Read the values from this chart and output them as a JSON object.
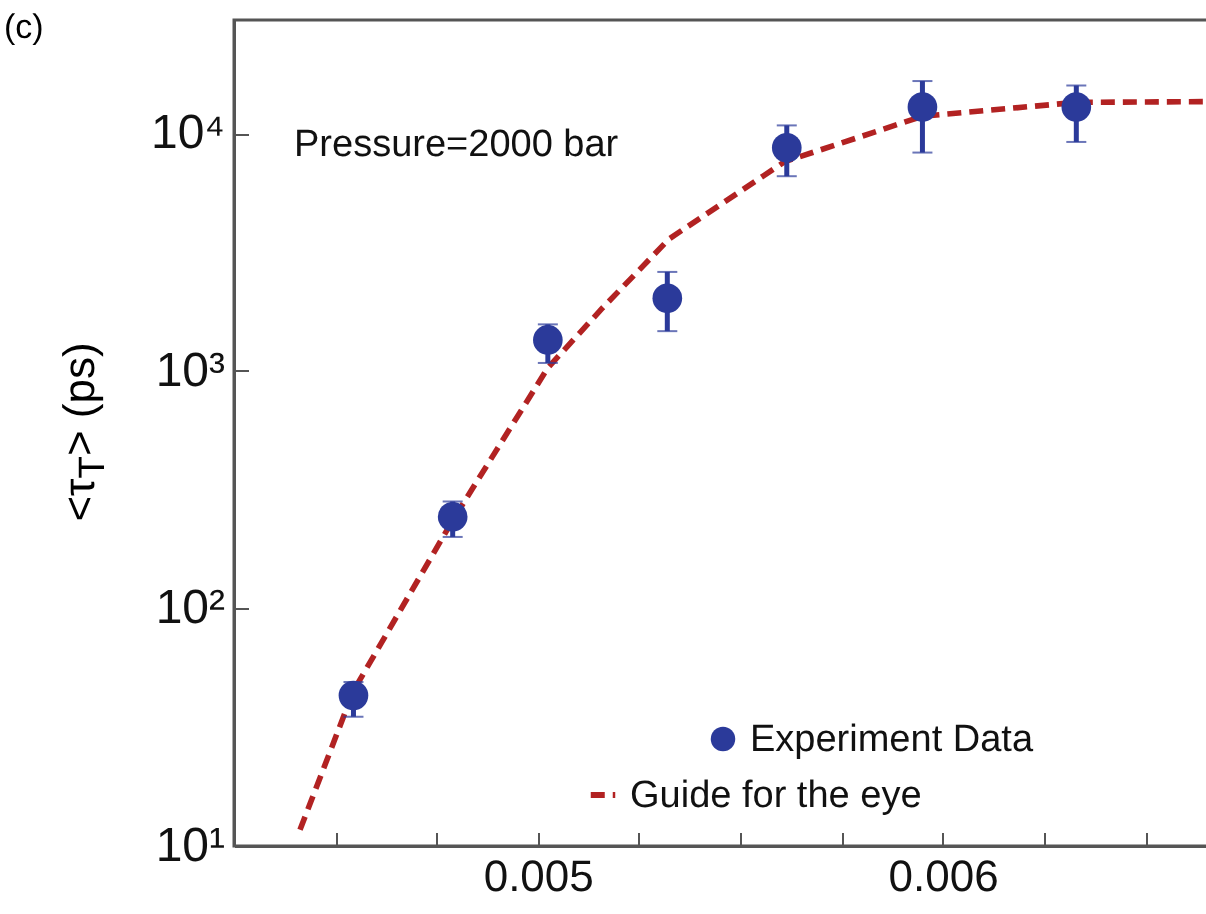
{
  "chart_data": {
    "type": "scatter",
    "ylabel": "<τ$_{T}$> (ps)",
    "annotations": [
      "(c)",
      "Pressure=2000 bar"
    ],
    "x": [
      0.004545,
      0.00479,
      0.005025,
      0.00532,
      0.005615,
      0.00595,
      0.00633
    ],
    "series": [
      {
        "name": "Experiment Data",
        "color": "#2b3a9a",
        "marker": "circle",
        "values": [
          43,
          243,
          1350,
          2020,
          8700,
          12900,
          12900
        ],
        "errors": [
          [
            35,
            49
          ],
          [
            200,
            282
          ],
          [
            1080,
            1570
          ],
          [
            1470,
            2610
          ],
          [
            6600,
            10800
          ],
          [
            8300,
            16600
          ],
          [
            9200,
            15900
          ]
        ]
      },
      {
        "name": "Guide for the eye",
        "type": "line",
        "color": "#b22222",
        "line_style": "dashed",
        "marker": "none",
        "x": [
          0.004413,
          0.004545,
          0.00479,
          0.005025,
          0.00516,
          0.005325,
          0.00561,
          0.00595,
          0.00633,
          0.00665
        ],
        "values": [
          11.7,
          45,
          235,
          1030,
          1840,
          3600,
          7600,
          11800,
          13500,
          13600
        ]
      }
    ],
    "log": "y",
    "legend": "bottom right",
    "xlim": [
      0.00425,
      0.00667
    ],
    "xticks": [
      {
        "value": 0.0045,
        "label": null
      },
      {
        "value": 0.00475,
        "label": null
      },
      0.005,
      {
        "value": 0.00525,
        "label": null
      },
      {
        "value": 0.0055,
        "label": null
      },
      {
        "value": 0.00575,
        "label": null
      },
      0.006,
      {
        "value": 0.00625,
        "label": null
      },
      {
        "value": 0.0065,
        "label": null
      }
    ],
    "ylim": [
      10,
      30000
    ],
    "yticks": [
      {
        "value": 10,
        "label": "10¹"
      },
      {
        "value": 100,
        "label": "10²"
      },
      {
        "value": 1000,
        "label": "10³"
      },
      {
        "value": 10000,
        "label": "10⁴"
      }
    ]
  }
}
